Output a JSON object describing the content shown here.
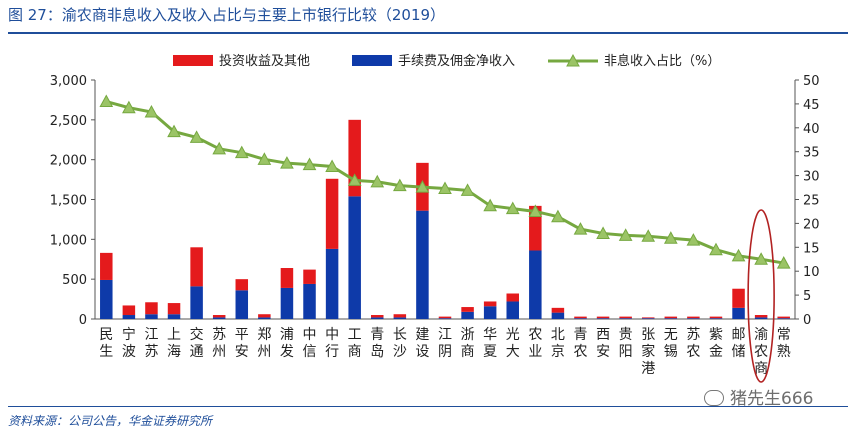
{
  "header": {
    "title": "图 27：渝农商非息收入及收入占比与主要上市银行比较（2019）"
  },
  "footer": {
    "source": "资料来源：公司公告，华金证券研究所",
    "watermark": "猪先生666"
  },
  "chart_data": {
    "type": "bar",
    "stacked": true,
    "categories": [
      "民生",
      "宁波",
      "江苏",
      "上海",
      "交通",
      "苏州",
      "平安",
      "郑州",
      "浦发",
      "中信",
      "中行",
      "工商",
      "青岛",
      "长沙",
      "建设",
      "江阴",
      "浙商",
      "华夏",
      "光大",
      "农业",
      "北京",
      "青农",
      "西安",
      "贵阳",
      "张家港",
      "无锡",
      "苏农",
      "紫金",
      "邮储",
      "渝农商",
      "常熟"
    ],
    "series": [
      {
        "name": "投资收益及其他",
        "color": "#e41a1c",
        "axis": "left",
        "values": [
          340,
          120,
          150,
          140,
          490,
          30,
          140,
          40,
          250,
          180,
          880,
          960,
          30,
          40,
          600,
          20,
          60,
          60,
          100,
          560,
          60,
          20,
          20,
          20,
          10,
          20,
          20,
          20,
          240,
          30,
          20
        ]
      },
      {
        "name": "手续费及佣金净收入",
        "color": "#0e3aa9",
        "axis": "left",
        "values": [
          490,
          50,
          60,
          60,
          410,
          20,
          360,
          20,
          390,
          440,
          880,
          1540,
          20,
          20,
          1360,
          10,
          90,
          160,
          220,
          860,
          80,
          10,
          10,
          10,
          10,
          10,
          10,
          10,
          140,
          20,
          10
        ]
      },
      {
        "name": "非息收入占比（%）",
        "color": "#76a840",
        "axis": "right",
        "type": "line",
        "values": [
          45.5,
          44.2,
          43.3,
          39.2,
          38.0,
          35.6,
          34.8,
          33.4,
          32.6,
          32.3,
          31.9,
          29.0,
          28.7,
          27.9,
          27.6,
          27.3,
          26.9,
          23.7,
          23.1,
          22.5,
          21.4,
          18.8,
          17.9,
          17.5,
          17.3,
          16.9,
          16.5,
          14.5,
          13.2,
          12.5,
          11.7
        ]
      }
    ],
    "yleft": {
      "min": 0,
      "max": 3000,
      "ticks": [
        "0",
        "500",
        "1,000",
        "1,500",
        "2,000",
        "2,500",
        "3,000"
      ]
    },
    "yright": {
      "min": 0,
      "max": 50,
      "ticks": [
        "0",
        "5",
        "10",
        "15",
        "20",
        "25",
        "30",
        "35",
        "40",
        "45",
        "50"
      ]
    },
    "legend": "top",
    "grid": false,
    "highlight": "渝农商",
    "highlight_color": "#b22222"
  }
}
